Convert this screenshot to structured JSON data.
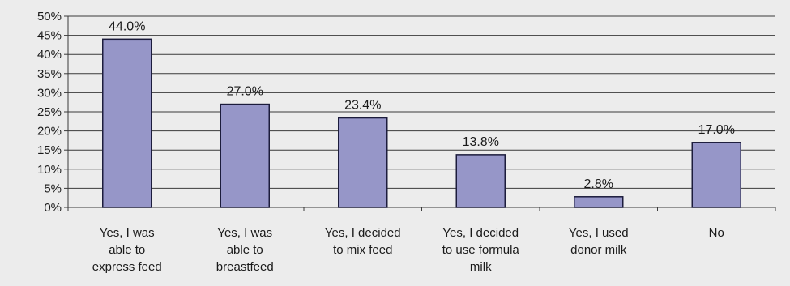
{
  "chart_data": {
    "type": "bar",
    "categories": [
      "Yes, I was able to express feed",
      "Yes, I was able to breastfeed",
      "Yes, I decided to mix feed",
      "Yes, I decided to use formula milk",
      "Yes, I used donor milk",
      "No"
    ],
    "category_lines": [
      [
        "Yes, I was",
        "able to",
        "express feed"
      ],
      [
        "Yes, I was",
        "able to",
        "breastfeed"
      ],
      [
        "Yes, I decided",
        "to mix feed"
      ],
      [
        "Yes, I decided",
        "to use formula",
        "milk"
      ],
      [
        "Yes, I used",
        "donor milk"
      ],
      [
        "No"
      ]
    ],
    "values": [
      44.0,
      27.0,
      23.4,
      13.8,
      2.8,
      17.0
    ],
    "data_labels": [
      "44.0%",
      "27.0%",
      "23.4%",
      "13.8%",
      "2.8%",
      "17.0%"
    ],
    "y_ticks": [
      "0%",
      "5%",
      "10%",
      "15%",
      "20%",
      "25%",
      "30%",
      "35%",
      "40%",
      "45%",
      "50%"
    ],
    "ylim": [
      0,
      50
    ],
    "grid": true,
    "legend": "none",
    "colors": {
      "bar_fill": "#9696c8",
      "bar_stroke": "#1c1c3c",
      "grid": "#3a3a3a",
      "axis": "#3a3a3a",
      "background": "#ececec"
    }
  }
}
